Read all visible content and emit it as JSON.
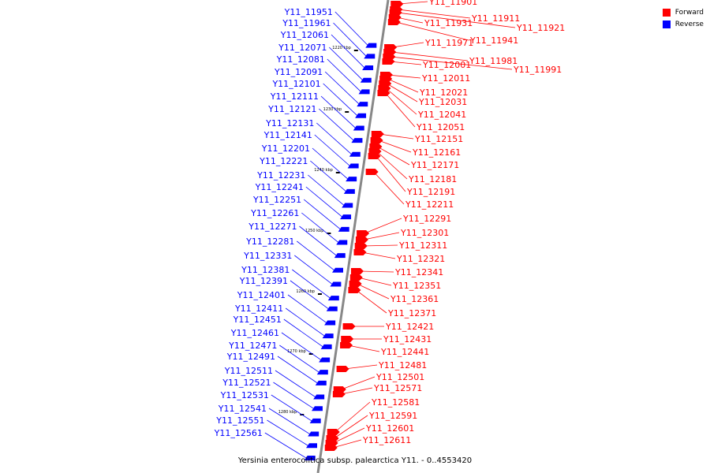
{
  "caption": "Yersinia enterocolitica subsp. palearctica Y11. - 0..4553420",
  "legend": [
    {
      "label": "Forward",
      "color": "#ff0000"
    },
    {
      "label": "Reverse",
      "color": "#0000ff"
    }
  ],
  "colors": {
    "forward": "#ff0000",
    "reverse": "#0000ff",
    "axis": "#888888"
  },
  "ticks": [
    "1220 kbp",
    "1230 kbp",
    "1240 kbp",
    "1250 kbp",
    "1260 kbp",
    "1270 kbp",
    "1280 kbp"
  ],
  "reverse_genes": [
    "Y11_11951",
    "Y11_11961",
    "Y11_12061",
    "Y11_12071",
    "Y11_12081",
    "Y11_12091",
    "Y11_12101",
    "Y11_12111",
    "Y11_12121",
    "Y11_12131",
    "Y11_12141",
    "Y11_12201",
    "Y11_12221",
    "Y11_12231",
    "Y11_12241",
    "Y11_12251",
    "Y11_12261",
    "Y11_12271",
    "Y11_12281",
    "Y11_12331",
    "Y11_12381",
    "Y11_12391",
    "Y11_12401",
    "Y11_12411",
    "Y11_12451",
    "Y11_12461",
    "Y11_12471",
    "Y11_12491",
    "Y11_12511",
    "Y11_12521",
    "Y11_12531",
    "Y11_12541",
    "Y11_12551",
    "Y11_12561"
  ],
  "forward_genes": [
    "Y11_11901",
    "Y11_11911",
    "Y11_11921",
    "Y11_11931",
    "Y11_11941",
    "Y11_11971",
    "Y11_11981",
    "Y11_11991",
    "Y11_12001",
    "Y11_12011",
    "Y11_12021",
    "Y11_12031",
    "Y11_12041",
    "Y11_12051",
    "Y11_12151",
    "Y11_12161",
    "Y11_12171",
    "Y11_12181",
    "Y11_12191",
    "Y11_12211",
    "Y11_12291",
    "Y11_12301",
    "Y11_12311",
    "Y11_12321",
    "Y11_12341",
    "Y11_12351",
    "Y11_12361",
    "Y11_12371",
    "Y11_12421",
    "Y11_12431",
    "Y11_12441",
    "Y11_12481",
    "Y11_12501",
    "Y11_12571",
    "Y11_12581",
    "Y11_12591",
    "Y11_12601",
    "Y11_12611"
  ]
}
